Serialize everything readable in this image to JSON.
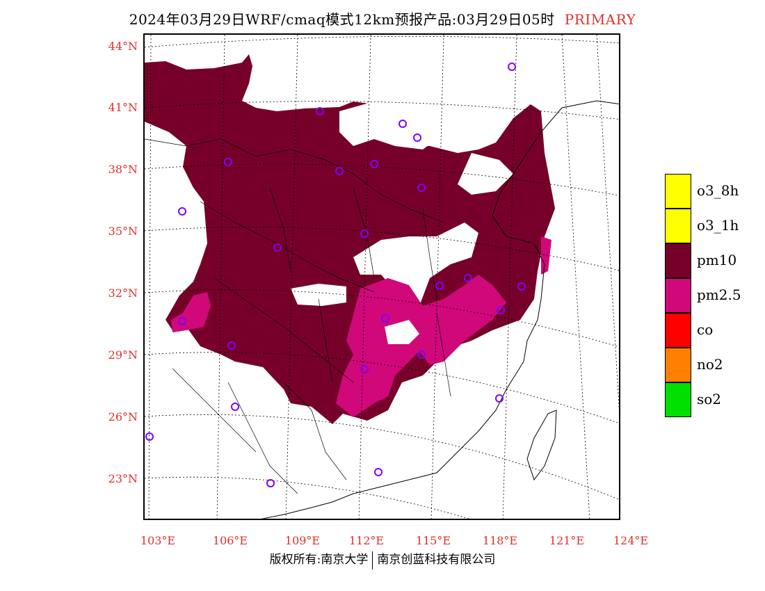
{
  "title": {
    "text": "2024年03月29日WRF/cmaq模式12km预报产品:03月29日05时",
    "tag": "PRIMARY"
  },
  "colors": {
    "label_red": "#e0302a",
    "pm10": "#76002a",
    "pm25": "#d0087a",
    "o3_8h": "#ffff00",
    "o3_1h": "#ffff00",
    "co": "#ff0000",
    "no2": "#ff7f00",
    "so2": "#00e000",
    "station": "#8000ff"
  },
  "axes": {
    "lat_labels": [
      "44°N",
      "41°N",
      "38°N",
      "35°N",
      "32°N",
      "29°N",
      "26°N",
      "23°N"
    ],
    "lon_labels": [
      "103°E",
      "106°E",
      "109°E",
      "112°E",
      "115°E",
      "118°E",
      "121°E",
      "124°E"
    ]
  },
  "legend": [
    {
      "label": "o3_8h",
      "color": "#ffff00"
    },
    {
      "label": "o3_1h",
      "color": "#ffff00"
    },
    {
      "label": "pm10",
      "color": "#76002a"
    },
    {
      "label": "pm2.5",
      "color": "#d0087a"
    },
    {
      "label": "co",
      "color": "#ff0000"
    },
    {
      "label": "no2",
      "color": "#ff7f00"
    },
    {
      "label": "so2",
      "color": "#00e000"
    }
  ],
  "footer": {
    "left": "版权所有:南京大学",
    "right": "南京创蓝科技有限公司"
  }
}
